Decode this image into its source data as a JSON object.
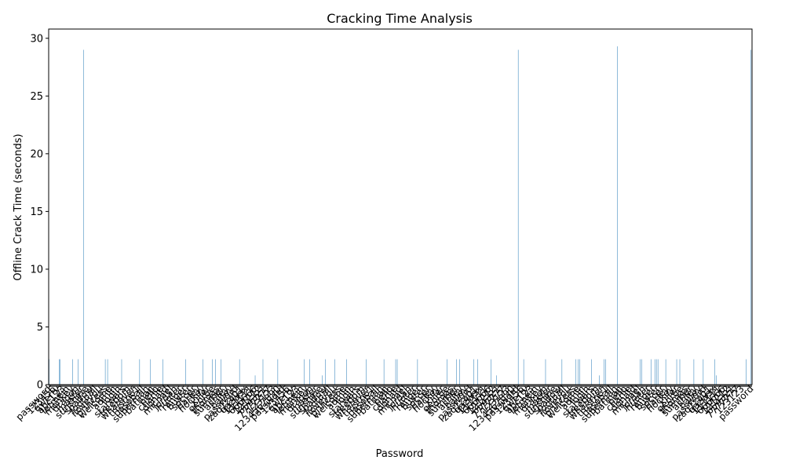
{
  "chart_data": {
    "type": "bar",
    "title": "Cracking Time Analysis",
    "xlabel": "Password",
    "ylabel": "Offline Crack Time (seconds)",
    "ylim": [
      0,
      30.8
    ],
    "yticks": [
      0,
      5,
      10,
      15,
      20,
      25,
      30
    ],
    "bar_color": "#1f77b4",
    "grid": false,
    "legend": "none",
    "categories": [
      "password",
      "123456",
      "qwerty",
      "abc123",
      "letmein",
      "monkey",
      "dragon",
      "master",
      "sunshine",
      "shadow",
      "football",
      "iloveyou",
      "princess",
      "welcome",
      "admin",
      "login",
      "starwars",
      "freedom",
      "whatever",
      "trustno1",
      "baseball",
      "superman",
      "batman",
      "hello",
      "charlie",
      "donald",
      "michael",
      "jordan",
      "hunter",
      "ranger",
      "buster",
      "soccer",
      "harley",
      "hockey",
      "killer",
      "george",
      "thomas",
      "summer",
      "ashley",
      "bailey",
      "passw0rd",
      "zaq1zaq1",
      "qazwsx",
      "111111",
      "666666",
      "121212",
      "654321",
      "7777777",
      "123123",
      "1234567890"
    ],
    "tail_label": "password",
    "tall_bars": [
      {
        "index": 44,
        "value": 29.0
      },
      {
        "index": 601,
        "value": 29.0
      },
      {
        "index": 728,
        "value": 29.3
      },
      {
        "index": 899,
        "value": 29.0
      }
    ],
    "medium_bars": [
      {
        "index": 0,
        "value": 2.2
      },
      {
        "index": 13,
        "value": 2.2
      },
      {
        "index": 14,
        "value": 2.2
      },
      {
        "index": 30,
        "value": 2.2
      },
      {
        "index": 37,
        "value": 2.2
      },
      {
        "index": 72,
        "value": 2.2
      },
      {
        "index": 75,
        "value": 2.2
      },
      {
        "index": 93,
        "value": 2.2
      },
      {
        "index": 116,
        "value": 2.2
      },
      {
        "index": 130,
        "value": 2.2
      },
      {
        "index": 146,
        "value": 2.2
      },
      {
        "index": 175,
        "value": 2.2
      },
      {
        "index": 197,
        "value": 2.2
      },
      {
        "index": 209,
        "value": 2.2
      },
      {
        "index": 213,
        "value": 2.2
      },
      {
        "index": 220,
        "value": 2.2
      },
      {
        "index": 244,
        "value": 2.2
      },
      {
        "index": 264,
        "value": 0.8
      },
      {
        "index": 274,
        "value": 2.2
      },
      {
        "index": 293,
        "value": 2.2
      },
      {
        "index": 327,
        "value": 2.2
      },
      {
        "index": 334,
        "value": 2.2
      },
      {
        "index": 350,
        "value": 0.8
      },
      {
        "index": 354,
        "value": 2.2
      },
      {
        "index": 366,
        "value": 2.2
      },
      {
        "index": 381,
        "value": 2.2
      },
      {
        "index": 406,
        "value": 2.2
      },
      {
        "index": 429,
        "value": 2.2
      },
      {
        "index": 444,
        "value": 2.2
      },
      {
        "index": 446,
        "value": 2.2
      },
      {
        "index": 472,
        "value": 2.2
      },
      {
        "index": 510,
        "value": 2.2
      },
      {
        "index": 522,
        "value": 2.2
      },
      {
        "index": 526,
        "value": 2.2
      },
      {
        "index": 544,
        "value": 2.2
      },
      {
        "index": 549,
        "value": 2.2
      },
      {
        "index": 566,
        "value": 2.2
      },
      {
        "index": 573,
        "value": 0.8
      },
      {
        "index": 608,
        "value": 2.2
      },
      {
        "index": 636,
        "value": 2.2
      },
      {
        "index": 657,
        "value": 2.2
      },
      {
        "index": 675,
        "value": 2.2
      },
      {
        "index": 678,
        "value": 2.2
      },
      {
        "index": 680,
        "value": 2.2
      },
      {
        "index": 695,
        "value": 2.2
      },
      {
        "index": 705,
        "value": 0.8
      },
      {
        "index": 711,
        "value": 2.2
      },
      {
        "index": 713,
        "value": 2.2
      },
      {
        "index": 757,
        "value": 2.2
      },
      {
        "index": 759,
        "value": 2.2
      },
      {
        "index": 771,
        "value": 2.2
      },
      {
        "index": 776,
        "value": 2.2
      },
      {
        "index": 778,
        "value": 2.2
      },
      {
        "index": 780,
        "value": 2.2
      },
      {
        "index": 790,
        "value": 2.2
      },
      {
        "index": 804,
        "value": 2.2
      },
      {
        "index": 808,
        "value": 2.2
      },
      {
        "index": 826,
        "value": 2.2
      },
      {
        "index": 838,
        "value": 2.2
      },
      {
        "index": 853,
        "value": 2.2
      },
      {
        "index": 855,
        "value": 0.8
      },
      {
        "index": 893,
        "value": 2.2
      }
    ],
    "bar_count": 901,
    "baseline_value": 0.02
  }
}
